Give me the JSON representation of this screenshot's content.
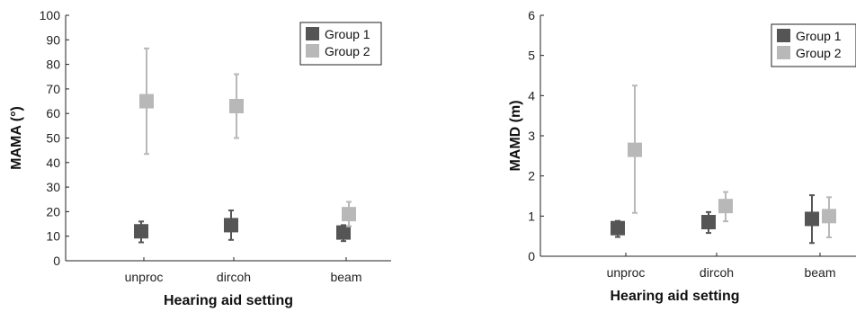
{
  "chart_data": [
    {
      "type": "scatter",
      "title": "",
      "xlabel": "Hearing aid setting",
      "ylabel": "MAMA (°)",
      "categories": [
        "unproc",
        "dircoh",
        "beam"
      ],
      "ylim": [
        0,
        100
      ],
      "yticks": [
        0,
        10,
        20,
        30,
        40,
        50,
        60,
        70,
        80,
        90,
        100
      ],
      "legend_position": "top-right",
      "grid": false,
      "series": [
        {
          "name": "Group 1",
          "color": "#555555",
          "values": [
            12,
            14.5,
            11.5
          ],
          "lower": [
            7.5,
            8.5,
            8
          ],
          "upper": [
            16,
            20.5,
            14.5
          ]
        },
        {
          "name": "Group 2",
          "color": "#b8b8b8",
          "values": [
            65,
            63,
            19
          ],
          "lower": [
            43.5,
            50,
            14
          ],
          "upper": [
            86.5,
            76,
            24
          ]
        }
      ]
    },
    {
      "type": "scatter",
      "title": "",
      "xlabel": "Hearing aid setting",
      "ylabel": "MAMD (m)",
      "categories": [
        "unproc",
        "dircoh",
        "beam"
      ],
      "ylim": [
        0,
        6
      ],
      "yticks": [
        0,
        1,
        2,
        3,
        4,
        5,
        6
      ],
      "legend_position": "top-right",
      "grid": false,
      "series": [
        {
          "name": "Group 1",
          "color": "#555555",
          "values": [
            0.7,
            0.85,
            0.93
          ],
          "lower": [
            0.48,
            0.58,
            0.33
          ],
          "upper": [
            0.88,
            1.1,
            1.52
          ]
        },
        {
          "name": "Group 2",
          "color": "#b8b8b8",
          "values": [
            2.65,
            1.25,
            1.0
          ],
          "lower": [
            1.08,
            0.87,
            0.47
          ],
          "upper": [
            4.25,
            1.6,
            1.47
          ]
        }
      ]
    }
  ]
}
